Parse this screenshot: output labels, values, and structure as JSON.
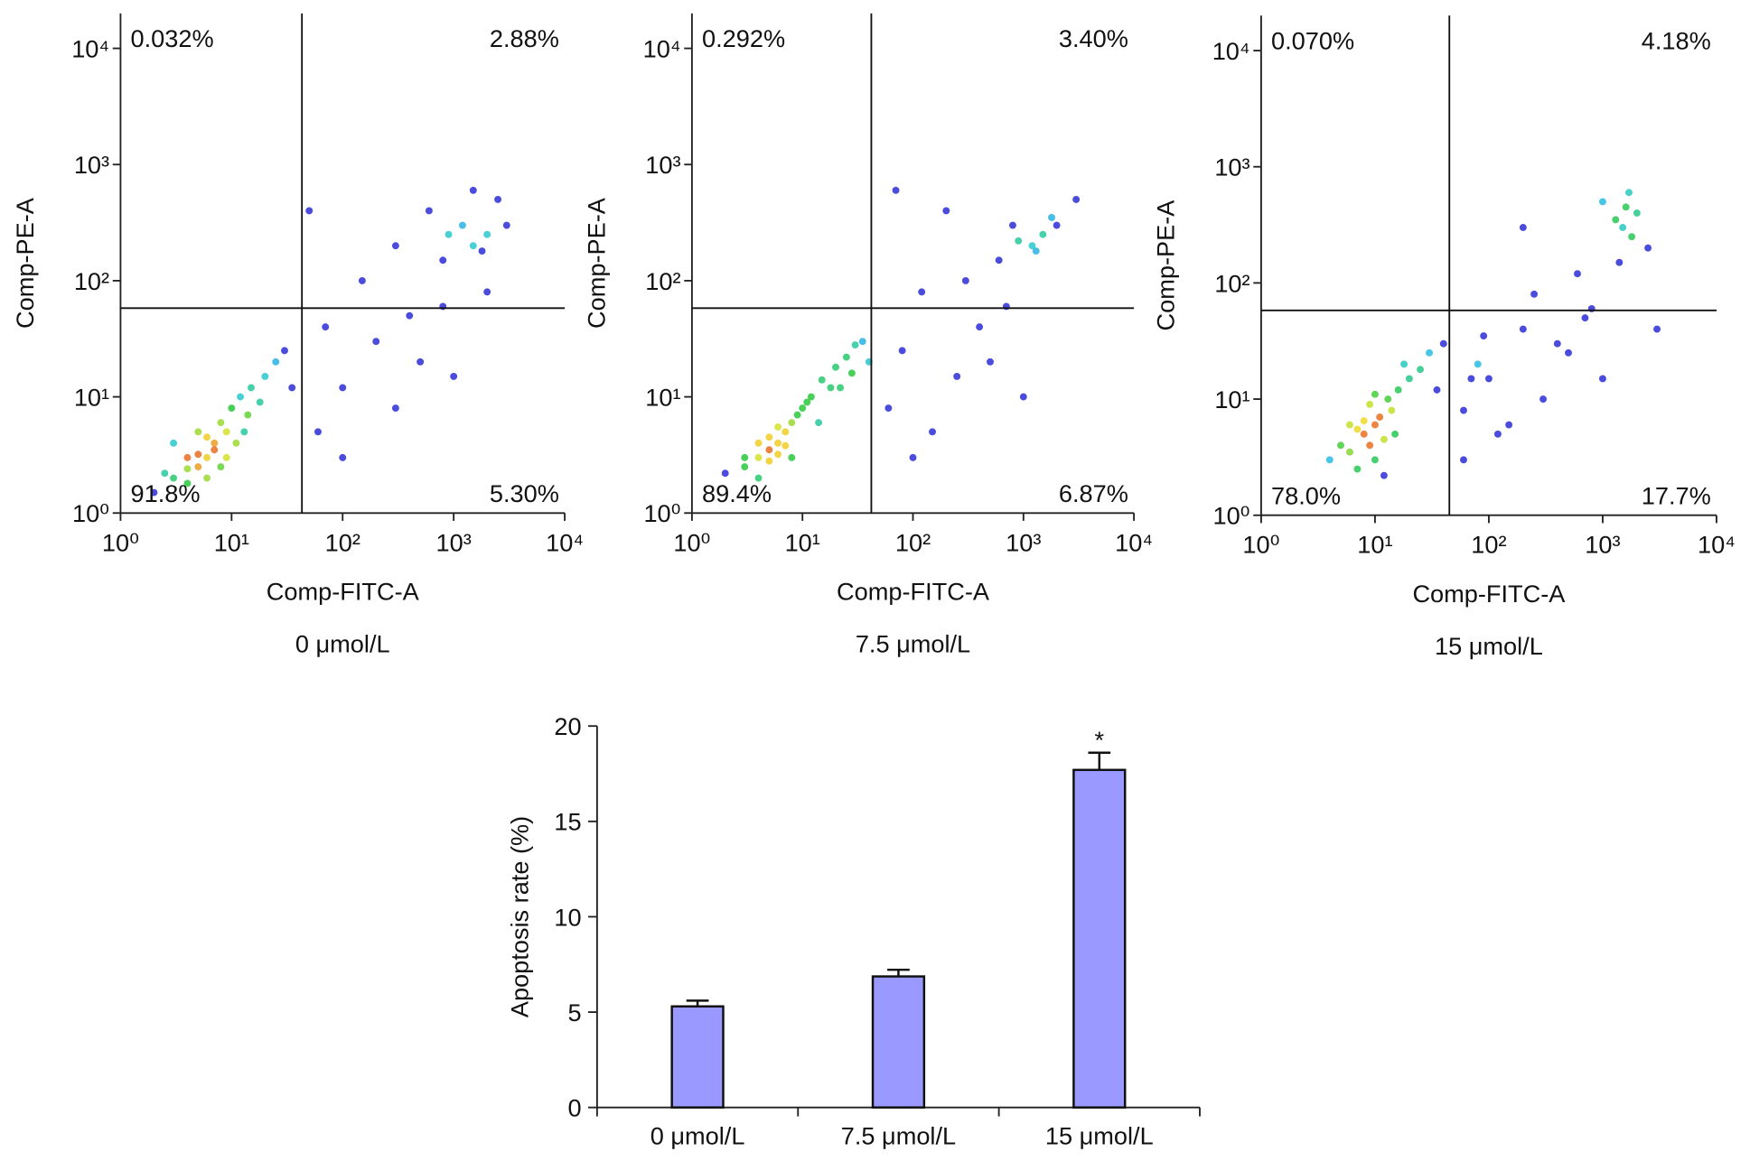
{
  "chart_data": [
    {
      "type": "scatter",
      "xlabel": "Comp-FITC-A",
      "ylabel": "Comp-PE-A",
      "caption": "0 μmol/L",
      "log_x": true,
      "log_y": true,
      "xlim": [
        1,
        10000
      ],
      "ylim": [
        1,
        20000
      ],
      "xticks": [
        {
          "value": 1,
          "label": "10⁰"
        },
        {
          "value": 10,
          "label": "10¹"
        },
        {
          "value": 100,
          "label": "10²"
        },
        {
          "value": 1000,
          "label": "10³"
        },
        {
          "value": 10000,
          "label": "10⁴"
        }
      ],
      "yticks": [
        {
          "value": 1,
          "label": "10⁰"
        },
        {
          "value": 10,
          "label": "10¹"
        },
        {
          "value": 100,
          "label": "10²"
        },
        {
          "value": 1000,
          "label": "10³"
        },
        {
          "value": 10000,
          "label": "10⁴"
        }
      ],
      "quadrant_x": 43,
      "quadrant_y": 58,
      "quadrant_values": [
        0.032,
        2.88,
        91.8,
        5.3
      ],
      "quadrant_labels": [
        "0.032%",
        "2.88%",
        "91.8%",
        "5.30%"
      ],
      "color": "#2b2bd6",
      "x": [
        3,
        4,
        5,
        6,
        7,
        5,
        8,
        4,
        6,
        9,
        10,
        12,
        15,
        7,
        5,
        3,
        2.5,
        8,
        11,
        14,
        20,
        25,
        18,
        6,
        4,
        9,
        2,
        13,
        30,
        35,
        60,
        100,
        200,
        300,
        500,
        800,
        1000,
        1500,
        2000,
        1200,
        800,
        600,
        2500,
        300,
        150,
        70,
        400,
        2000,
        3000,
        1500,
        100,
        900,
        1800,
        50
      ],
      "y": [
        2,
        3,
        2.5,
        3,
        4,
        5,
        6,
        1.8,
        2,
        5,
        8,
        10,
        12,
        3.5,
        3.2,
        4,
        2.2,
        2.5,
        4,
        7,
        15,
        20,
        9,
        4.5,
        2.4,
        3,
        1.5,
        5,
        25,
        12,
        5,
        12,
        30,
        8,
        20,
        60,
        15,
        200,
        250,
        300,
        150,
        400,
        500,
        200,
        100,
        40,
        50,
        80,
        300,
        600,
        3,
        250,
        180,
        400
      ]
    },
    {
      "type": "scatter",
      "xlabel": "Comp-FITC-A",
      "ylabel": "Comp-PE-A",
      "caption": "7.5 μmol/L",
      "log_x": true,
      "log_y": true,
      "xlim": [
        1,
        10000
      ],
      "ylim": [
        1,
        20000
      ],
      "xticks": [
        {
          "value": 1,
          "label": "10⁰"
        },
        {
          "value": 10,
          "label": "10¹"
        },
        {
          "value": 100,
          "label": "10²"
        },
        {
          "value": 1000,
          "label": "10³"
        },
        {
          "value": 10000,
          "label": "10⁴"
        }
      ],
      "yticks": [
        {
          "value": 1,
          "label": "10⁰"
        },
        {
          "value": 10,
          "label": "10¹"
        },
        {
          "value": 100,
          "label": "10²"
        },
        {
          "value": 1000,
          "label": "10³"
        },
        {
          "value": 10000,
          "label": "10⁴"
        }
      ],
      "quadrant_x": 42,
      "quadrant_y": 58,
      "quadrant_values": [
        0.292,
        3.4,
        89.4,
        6.87
      ],
      "quadrant_labels": [
        "0.292%",
        "3.40%",
        "89.4%",
        "6.87%"
      ],
      "color": "#2b2bd6",
      "x": [
        3,
        4,
        5,
        6,
        5,
        4,
        7,
        8,
        3,
        6,
        5,
        9,
        10,
        12,
        15,
        20,
        25,
        30,
        18,
        7,
        4,
        2,
        6,
        8,
        11,
        14,
        22,
        35,
        40,
        28,
        60,
        80,
        150,
        250,
        400,
        700,
        1000,
        1500,
        800,
        1200,
        600,
        300,
        200,
        120,
        2000,
        900,
        500,
        1800,
        3000,
        100,
        1300,
        70
      ],
      "y": [
        2.5,
        3,
        3.5,
        4,
        2.8,
        2,
        5,
        6,
        3,
        3.2,
        4.5,
        7,
        8,
        10,
        14,
        18,
        22,
        28,
        12,
        3.8,
        4,
        2.2,
        5.5,
        3,
        9,
        6,
        12,
        30,
        20,
        16,
        8,
        25,
        5,
        15,
        40,
        60,
        10,
        250,
        300,
        200,
        150,
        100,
        400,
        80,
        300,
        220,
        20,
        350,
        500,
        3,
        180,
        600
      ]
    },
    {
      "type": "scatter",
      "xlabel": "Comp-FITC-A",
      "ylabel": "Comp-PE-A",
      "caption": "15 μmol/L",
      "log_x": true,
      "log_y": true,
      "xlim": [
        1,
        10000
      ],
      "ylim": [
        1,
        20000
      ],
      "xticks": [
        {
          "value": 1,
          "label": "10⁰"
        },
        {
          "value": 10,
          "label": "10¹"
        },
        {
          "value": 100,
          "label": "10²"
        },
        {
          "value": 1000,
          "label": "10³"
        },
        {
          "value": 10000,
          "label": "10⁴"
        }
      ],
      "yticks": [
        {
          "value": 1,
          "label": "10⁰"
        },
        {
          "value": 10,
          "label": "10¹"
        },
        {
          "value": 100,
          "label": "10²"
        },
        {
          "value": 1000,
          "label": "10³"
        },
        {
          "value": 10000,
          "label": "10⁴"
        }
      ],
      "quadrant_x": 45,
      "quadrant_y": 58,
      "quadrant_values": [
        0.07,
        4.18,
        78.0,
        17.7
      ],
      "quadrant_labels": [
        "0.070%",
        "4.18%",
        "78.0%",
        "17.7%"
      ],
      "color": "#2b2bd6",
      "x": [
        8,
        10,
        12,
        9,
        7,
        11,
        6,
        14,
        10,
        8,
        13,
        5,
        4,
        16,
        20,
        9,
        7,
        12,
        25,
        30,
        18,
        15,
        6,
        10,
        40,
        35,
        60,
        80,
        100,
        150,
        200,
        300,
        500,
        700,
        1000,
        60,
        90,
        120,
        250,
        400,
        800,
        1500,
        2000,
        1300,
        1600,
        1800,
        2500,
        1000,
        600,
        3000,
        70,
        200,
        1400,
        1700
      ],
      "y": [
        5,
        6,
        4.5,
        4,
        5.5,
        7,
        3.5,
        8,
        3,
        6.5,
        10,
        4,
        3,
        12,
        15,
        9,
        2.5,
        2.2,
        18,
        25,
        20,
        5,
        6,
        11,
        30,
        12,
        8,
        20,
        15,
        6,
        40,
        10,
        25,
        50,
        15,
        3,
        35,
        5,
        80,
        30,
        60,
        300,
        400,
        350,
        450,
        250,
        200,
        500,
        120,
        40,
        15,
        300,
        150,
        600
      ]
    },
    {
      "type": "bar",
      "ylabel": "Apoptosis rate (%)",
      "categories": [
        "0 μmol/L",
        "7.5 μmol/L",
        "15 μmol/L"
      ],
      "values": [
        5.3,
        6.87,
        17.7
      ],
      "errors": [
        0.3,
        0.35,
        0.9
      ],
      "significance": [
        null,
        null,
        "*"
      ],
      "ylim": [
        0,
        20
      ],
      "yticks": [
        0,
        5,
        10,
        15,
        20
      ],
      "color": "#9999ff"
    }
  ]
}
